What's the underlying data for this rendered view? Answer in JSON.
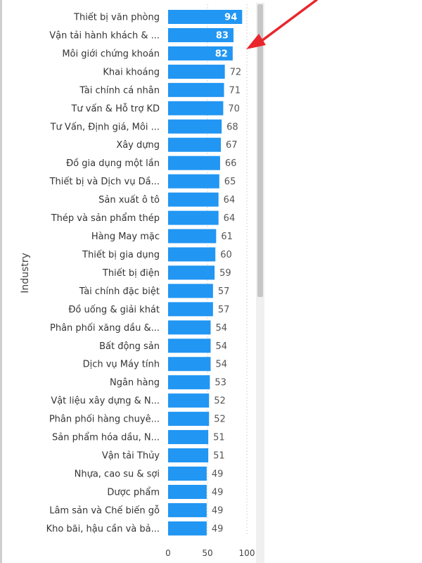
{
  "chart_data": {
    "type": "bar",
    "orientation": "horizontal",
    "ylabel": "Industry",
    "xlabel": "",
    "xlim": [
      0,
      100
    ],
    "xticks": [
      0,
      50,
      100
    ],
    "bar_color": "#2196F3",
    "categories": [
      "Thiết bị văn phòng",
      "Vận tải hành khách & ...",
      "Môi giới chứng khoán",
      "Khai khoáng",
      "Tài chính cá nhân",
      "Tư vấn & Hỗ trợ KD",
      "Tư Vấn, Định giá, Môi ...",
      "Xây dựng",
      "Đồ gia dụng một lần",
      "Thiết bị và Dịch vụ Dầ...",
      "Sản xuất ô tô",
      "Thép và sản phẩm thép",
      "Hàng May mặc",
      "Thiết bị gia dụng",
      "Thiết bị điện",
      "Tài chính đặc biệt",
      "Đồ uống & giải khát",
      "Phân phối xăng dầu &...",
      "Bất động sản",
      "Dịch vụ Máy tính",
      "Ngân hàng",
      "Vật liệu xây dựng & N...",
      "Phân phối hàng chuyê...",
      "Sản phẩm hóa dầu, N...",
      "Vận tải Thủy",
      "Nhựa, cao su & sợi",
      "Dược phẩm",
      "Lâm sản và Chế biến gỗ",
      "Kho bãi, hậu cần và bả..."
    ],
    "values": [
      94,
      83,
      82,
      72,
      71,
      70,
      68,
      67,
      66,
      65,
      64,
      64,
      61,
      60,
      59,
      57,
      57,
      54,
      54,
      54,
      53,
      52,
      52,
      51,
      51,
      49,
      49,
      49,
      49
    ],
    "values_inside_bar_count": 3,
    "annotation": "red-arrow-pointing-at-third-bar",
    "annotation_color": "#E8262C",
    "scrollbar": "vertical-right"
  }
}
